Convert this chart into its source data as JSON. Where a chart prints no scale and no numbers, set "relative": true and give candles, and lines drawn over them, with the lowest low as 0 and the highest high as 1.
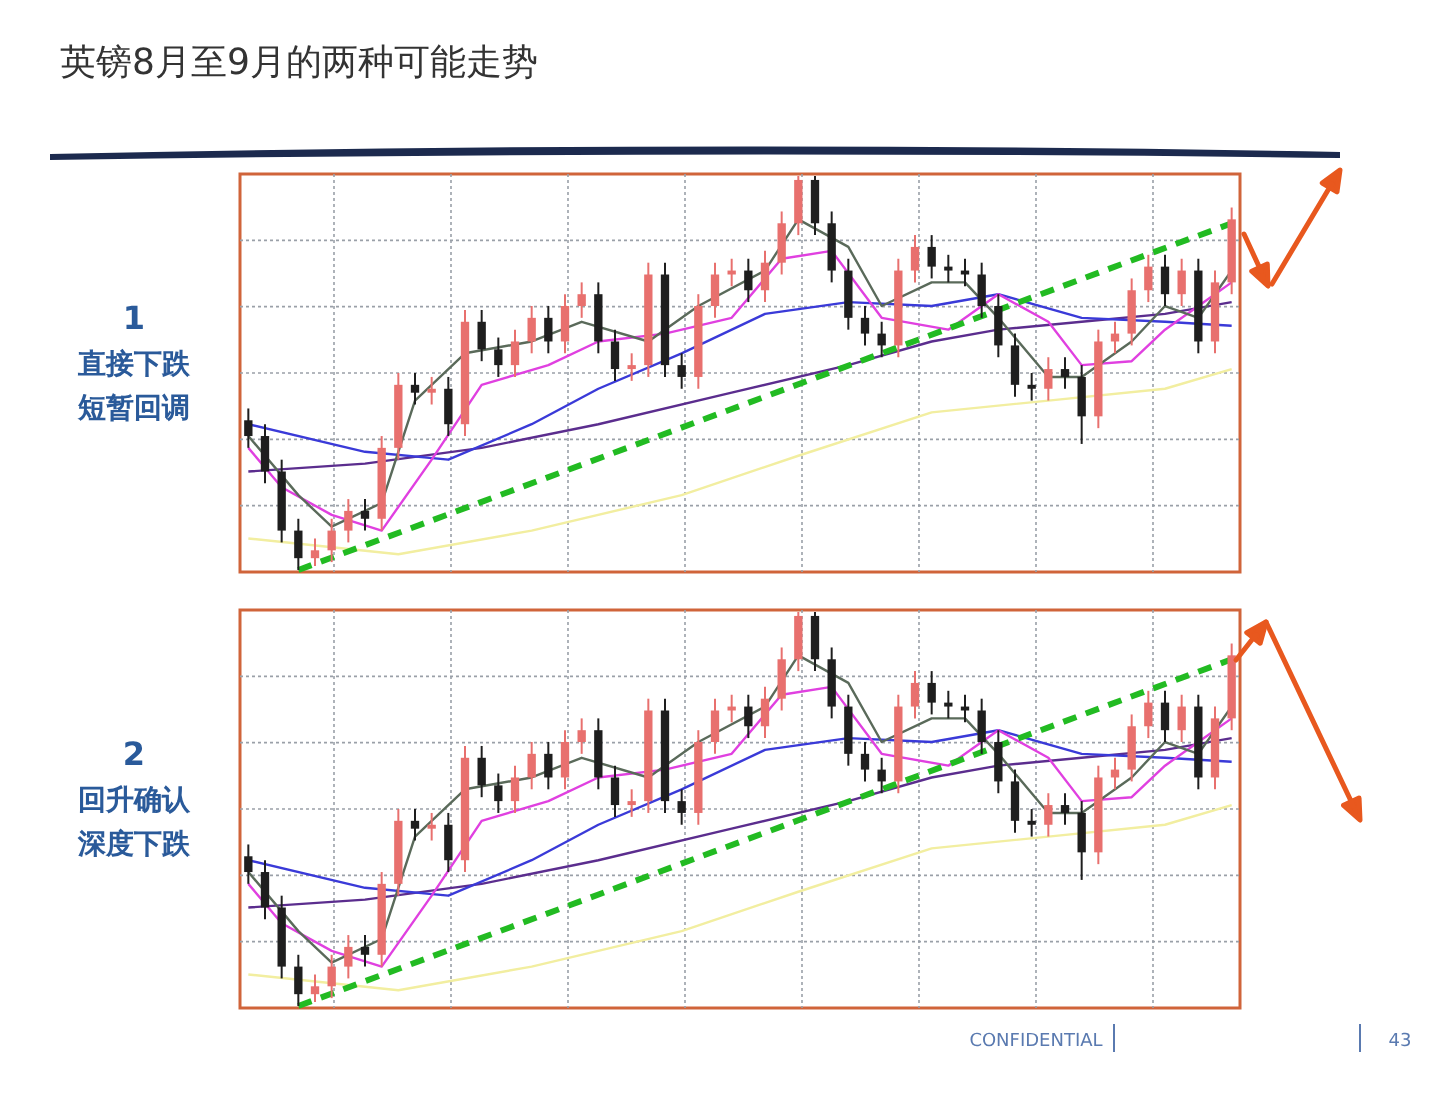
{
  "chart_data": [
    {
      "type": "candlestick",
      "title": "英镑8月至9月的两种可能走势",
      "relative": true,
      "grid": true,
      "annotations": [
        "1",
        "直接下跌",
        "短暂回调"
      ],
      "categories": [
        null,
        null,
        null,
        null,
        null,
        null,
        null,
        null,
        null,
        null,
        null,
        null,
        null,
        null,
        null,
        null,
        null,
        null,
        null,
        null,
        null,
        null,
        null,
        null,
        null,
        null,
        null,
        null,
        null,
        null,
        null,
        null,
        null,
        null,
        null,
        null,
        null,
        null,
        null,
        null,
        null,
        null,
        null,
        null,
        null,
        null,
        null,
        null,
        null,
        null,
        null,
        null,
        null,
        null,
        null,
        null,
        null,
        null,
        null,
        null
      ],
      "ohlc": [
        [
          0.38,
          0.41,
          0.31,
          0.34
        ],
        [
          0.34,
          0.37,
          0.22,
          0.25
        ],
        [
          0.25,
          0.28,
          0.07,
          0.1
        ],
        [
          0.1,
          0.13,
          0.0,
          0.03
        ],
        [
          0.03,
          0.08,
          0.01,
          0.05
        ],
        [
          0.05,
          0.13,
          0.02,
          0.1
        ],
        [
          0.1,
          0.18,
          0.07,
          0.15
        ],
        [
          0.15,
          0.18,
          0.1,
          0.13
        ],
        [
          0.13,
          0.34,
          0.1,
          0.31
        ],
        [
          0.31,
          0.5,
          0.28,
          0.47
        ],
        [
          0.47,
          0.5,
          0.42,
          0.45
        ],
        [
          0.45,
          0.49,
          0.42,
          0.46
        ],
        [
          0.46,
          0.49,
          0.34,
          0.37
        ],
        [
          0.37,
          0.66,
          0.34,
          0.63
        ],
        [
          0.63,
          0.66,
          0.53,
          0.56
        ],
        [
          0.56,
          0.59,
          0.49,
          0.52
        ],
        [
          0.52,
          0.61,
          0.49,
          0.58
        ],
        [
          0.58,
          0.67,
          0.55,
          0.64
        ],
        [
          0.64,
          0.67,
          0.55,
          0.58
        ],
        [
          0.58,
          0.7,
          0.55,
          0.67
        ],
        [
          0.67,
          0.73,
          0.64,
          0.7
        ],
        [
          0.7,
          0.73,
          0.55,
          0.58
        ],
        [
          0.58,
          0.61,
          0.48,
          0.51
        ],
        [
          0.51,
          0.55,
          0.48,
          0.52
        ],
        [
          0.52,
          0.78,
          0.49,
          0.75
        ],
        [
          0.75,
          0.78,
          0.49,
          0.52
        ],
        [
          0.52,
          0.55,
          0.46,
          0.49
        ],
        [
          0.49,
          0.7,
          0.46,
          0.67
        ],
        [
          0.67,
          0.78,
          0.64,
          0.75
        ],
        [
          0.75,
          0.79,
          0.72,
          0.76
        ],
        [
          0.76,
          0.79,
          0.68,
          0.71
        ],
        [
          0.71,
          0.81,
          0.68,
          0.78
        ],
        [
          0.78,
          0.91,
          0.75,
          0.88
        ],
        [
          0.88,
          1.0,
          0.85,
          0.99
        ],
        [
          0.99,
          1.0,
          0.85,
          0.88
        ],
        [
          0.88,
          0.91,
          0.73,
          0.76
        ],
        [
          0.76,
          0.79,
          0.61,
          0.64
        ],
        [
          0.64,
          0.67,
          0.57,
          0.6
        ],
        [
          0.6,
          0.63,
          0.54,
          0.57
        ],
        [
          0.57,
          0.79,
          0.54,
          0.76
        ],
        [
          0.76,
          0.85,
          0.73,
          0.82
        ],
        [
          0.82,
          0.85,
          0.74,
          0.77
        ],
        [
          0.77,
          0.8,
          0.73,
          0.76
        ],
        [
          0.76,
          0.79,
          0.72,
          0.75
        ],
        [
          0.75,
          0.78,
          0.64,
          0.67
        ],
        [
          0.67,
          0.7,
          0.54,
          0.57
        ],
        [
          0.57,
          0.6,
          0.44,
          0.47
        ],
        [
          0.47,
          0.5,
          0.43,
          0.46
        ],
        [
          0.46,
          0.54,
          0.43,
          0.51
        ],
        [
          0.51,
          0.54,
          0.46,
          0.49
        ],
        [
          0.49,
          0.52,
          0.32,
          0.39
        ],
        [
          0.39,
          0.61,
          0.36,
          0.58
        ],
        [
          0.58,
          0.63,
          0.55,
          0.6
        ],
        [
          0.6,
          0.74,
          0.57,
          0.71
        ],
        [
          0.71,
          0.8,
          0.68,
          0.77
        ],
        [
          0.77,
          0.8,
          0.67,
          0.7
        ],
        [
          0.7,
          0.79,
          0.67,
          0.76
        ],
        [
          0.76,
          0.79,
          0.55,
          0.58
        ],
        [
          0.58,
          0.76,
          0.55,
          0.73
        ],
        [
          0.73,
          0.92,
          0.7,
          0.89
        ]
      ],
      "series": [
        {
          "type": "line",
          "color": "#f2eea0",
          "values": [
            0.08,
            null,
            null,
            null,
            null,
            null,
            null,
            null,
            null,
            0.04,
            null,
            null,
            null,
            null,
            null,
            null,
            null,
            0.1,
            null,
            null,
            null,
            null,
            null,
            null,
            null,
            null,
            0.19,
            null,
            null,
            null,
            null,
            null,
            null,
            0.29,
            null,
            null,
            null,
            null,
            null,
            null,
            null,
            0.4,
            null,
            null,
            null,
            null,
            null,
            null,
            0.43,
            null,
            null,
            null,
            null,
            null,
            null,
            0.46,
            null,
            null,
            null,
            0.51
          ]
        },
        {
          "type": "line",
          "color": "#5b2d8e",
          "values": [
            0.25,
            null,
            null,
            null,
            null,
            null,
            null,
            0.27,
            null,
            null,
            null,
            null,
            null,
            null,
            0.31,
            null,
            null,
            null,
            null,
            null,
            null,
            0.37,
            null,
            null,
            null,
            null,
            null,
            null,
            null,
            0.45,
            null,
            null,
            null,
            null,
            null,
            null,
            0.52,
            null,
            null,
            null,
            null,
            0.58,
            null,
            null,
            null,
            0.61,
            null,
            null,
            null,
            null,
            0.63,
            null,
            null,
            null,
            null,
            0.65,
            null,
            null,
            null,
            0.68
          ]
        },
        {
          "type": "line",
          "color": "#3a3ad8",
          "values": [
            0.37,
            null,
            null,
            null,
            null,
            null,
            null,
            0.3,
            null,
            null,
            null,
            null,
            0.28,
            null,
            null,
            null,
            null,
            0.37,
            null,
            null,
            null,
            0.46,
            null,
            null,
            null,
            null,
            0.55,
            null,
            null,
            null,
            null,
            0.65,
            null,
            null,
            null,
            null,
            0.68,
            null,
            null,
            null,
            null,
            0.67,
            null,
            null,
            null,
            0.7,
            null,
            null,
            null,
            null,
            0.64,
            null,
            null,
            null,
            null,
            0.63,
            null,
            null,
            null,
            0.62
          ]
        },
        {
          "type": "line",
          "color": "#e040e0",
          "values": [
            0.31,
            null,
            0.21,
            null,
            null,
            0.14,
            null,
            null,
            0.1,
            null,
            null,
            0.28,
            null,
            null,
            0.47,
            null,
            null,
            null,
            0.52,
            null,
            null,
            0.58,
            null,
            null,
            null,
            0.6,
            null,
            null,
            null,
            0.64,
            null,
            null,
            0.79,
            null,
            null,
            0.81,
            null,
            null,
            0.64,
            null,
            null,
            null,
            0.61,
            null,
            null,
            0.7,
            null,
            null,
            0.63,
            null,
            0.52,
            null,
            null,
            0.53,
            null,
            0.61,
            null,
            0.67,
            null,
            0.73
          ]
        },
        {
          "type": "line",
          "color": "#5a6a5a",
          "values": [
            0.34,
            null,
            null,
            0.19,
            null,
            0.11,
            null,
            null,
            0.17,
            null,
            0.43,
            null,
            null,
            0.55,
            null,
            null,
            null,
            0.58,
            null,
            null,
            0.63,
            null,
            null,
            null,
            0.58,
            null,
            null,
            0.67,
            null,
            null,
            null,
            0.76,
            null,
            0.89,
            null,
            null,
            0.82,
            null,
            0.67,
            null,
            null,
            0.73,
            null,
            0.73,
            null,
            0.64,
            null,
            null,
            0.49,
            null,
            0.49,
            null,
            null,
            0.58,
            null,
            0.67,
            null,
            0.64,
            null,
            0.76
          ]
        },
        {
          "type": "line",
          "color": "#22bb22",
          "line_style": "dashed",
          "values": [
            null,
            null,
            null,
            0.0,
            null,
            null,
            null,
            null,
            null,
            null,
            null,
            null,
            null,
            null,
            null,
            null,
            null,
            null,
            null,
            null,
            null,
            null,
            null,
            null,
            null,
            null,
            null,
            null,
            null,
            null,
            null,
            null,
            null,
            null,
            null,
            null,
            null,
            null,
            null,
            null,
            null,
            null,
            null,
            null,
            null,
            null,
            null,
            null,
            null,
            null,
            null,
            null,
            null,
            null,
            null,
            null,
            null,
            null,
            null,
            0.88
          ]
        }
      ]
    },
    {
      "type": "candlestick",
      "relative": true,
      "grid": true,
      "annotations": [
        "2",
        "回升确认",
        "深度下跌",
        "CONFIDENTIAL",
        "43"
      ],
      "categories": [
        null,
        null,
        null,
        null,
        null,
        null,
        null,
        null,
        null,
        null,
        null,
        null,
        null,
        null,
        null,
        null,
        null,
        null,
        null,
        null,
        null,
        null,
        null,
        null,
        null,
        null,
        null,
        null,
        null,
        null,
        null,
        null,
        null,
        null,
        null,
        null,
        null,
        null,
        null,
        null,
        null,
        null,
        null,
        null,
        null,
        null,
        null,
        null,
        null,
        null,
        null,
        null,
        null,
        null,
        null,
        null,
        null,
        null,
        null,
        null
      ],
      "ohlc": [
        [
          0.38,
          0.41,
          0.31,
          0.34
        ],
        [
          0.34,
          0.37,
          0.22,
          0.25
        ],
        [
          0.25,
          0.28,
          0.07,
          0.1
        ],
        [
          0.1,
          0.13,
          0.0,
          0.03
        ],
        [
          0.03,
          0.08,
          0.01,
          0.05
        ],
        [
          0.05,
          0.13,
          0.02,
          0.1
        ],
        [
          0.1,
          0.18,
          0.07,
          0.15
        ],
        [
          0.15,
          0.18,
          0.1,
          0.13
        ],
        [
          0.13,
          0.34,
          0.1,
          0.31
        ],
        [
          0.31,
          0.5,
          0.28,
          0.47
        ],
        [
          0.47,
          0.5,
          0.42,
          0.45
        ],
        [
          0.45,
          0.49,
          0.42,
          0.46
        ],
        [
          0.46,
          0.49,
          0.34,
          0.37
        ],
        [
          0.37,
          0.66,
          0.34,
          0.63
        ],
        [
          0.63,
          0.66,
          0.53,
          0.56
        ],
        [
          0.56,
          0.59,
          0.49,
          0.52
        ],
        [
          0.52,
          0.61,
          0.49,
          0.58
        ],
        [
          0.58,
          0.67,
          0.55,
          0.64
        ],
        [
          0.64,
          0.67,
          0.55,
          0.58
        ],
        [
          0.58,
          0.7,
          0.55,
          0.67
        ],
        [
          0.67,
          0.73,
          0.64,
          0.7
        ],
        [
          0.7,
          0.73,
          0.55,
          0.58
        ],
        [
          0.58,
          0.61,
          0.48,
          0.51
        ],
        [
          0.51,
          0.55,
          0.48,
          0.52
        ],
        [
          0.52,
          0.78,
          0.49,
          0.75
        ],
        [
          0.75,
          0.78,
          0.49,
          0.52
        ],
        [
          0.52,
          0.55,
          0.46,
          0.49
        ],
        [
          0.49,
          0.7,
          0.46,
          0.67
        ],
        [
          0.67,
          0.78,
          0.64,
          0.75
        ],
        [
          0.75,
          0.79,
          0.72,
          0.76
        ],
        [
          0.76,
          0.79,
          0.68,
          0.71
        ],
        [
          0.71,
          0.81,
          0.68,
          0.78
        ],
        [
          0.78,
          0.91,
          0.75,
          0.88
        ],
        [
          0.88,
          1.0,
          0.85,
          0.99
        ],
        [
          0.99,
          1.0,
          0.85,
          0.88
        ],
        [
          0.88,
          0.91,
          0.73,
          0.76
        ],
        [
          0.76,
          0.79,
          0.61,
          0.64
        ],
        [
          0.64,
          0.67,
          0.57,
          0.6
        ],
        [
          0.6,
          0.63,
          0.54,
          0.57
        ],
        [
          0.57,
          0.79,
          0.54,
          0.76
        ],
        [
          0.76,
          0.85,
          0.73,
          0.82
        ],
        [
          0.82,
          0.85,
          0.74,
          0.77
        ],
        [
          0.77,
          0.8,
          0.73,
          0.76
        ],
        [
          0.76,
          0.79,
          0.72,
          0.75
        ],
        [
          0.75,
          0.78,
          0.64,
          0.67
        ],
        [
          0.67,
          0.7,
          0.54,
          0.57
        ],
        [
          0.57,
          0.6,
          0.44,
          0.47
        ],
        [
          0.47,
          0.5,
          0.43,
          0.46
        ],
        [
          0.46,
          0.54,
          0.43,
          0.51
        ],
        [
          0.51,
          0.54,
          0.46,
          0.49
        ],
        [
          0.49,
          0.52,
          0.32,
          0.39
        ],
        [
          0.39,
          0.61,
          0.36,
          0.58
        ],
        [
          0.58,
          0.63,
          0.55,
          0.6
        ],
        [
          0.6,
          0.74,
          0.57,
          0.71
        ],
        [
          0.71,
          0.8,
          0.68,
          0.77
        ],
        [
          0.77,
          0.8,
          0.67,
          0.7
        ],
        [
          0.7,
          0.79,
          0.67,
          0.76
        ],
        [
          0.76,
          0.79,
          0.55,
          0.58
        ],
        [
          0.58,
          0.76,
          0.55,
          0.73
        ],
        [
          0.73,
          0.92,
          0.7,
          0.89
        ]
      ],
      "series": [
        {
          "type": "line",
          "color": "#f2eea0",
          "values": [
            0.08,
            null,
            null,
            null,
            null,
            null,
            null,
            null,
            null,
            0.04,
            null,
            null,
            null,
            null,
            null,
            null,
            null,
            0.1,
            null,
            null,
            null,
            null,
            null,
            null,
            null,
            null,
            0.19,
            null,
            null,
            null,
            null,
            null,
            null,
            0.29,
            null,
            null,
            null,
            null,
            null,
            null,
            null,
            0.4,
            null,
            null,
            null,
            null,
            null,
            null,
            0.43,
            null,
            null,
            null,
            null,
            null,
            null,
            0.46,
            null,
            null,
            null,
            0.51
          ]
        },
        {
          "type": "line",
          "color": "#5b2d8e",
          "values": [
            0.25,
            null,
            null,
            null,
            null,
            null,
            null,
            0.27,
            null,
            null,
            null,
            null,
            null,
            null,
            0.31,
            null,
            null,
            null,
            null,
            null,
            null,
            0.37,
            null,
            null,
            null,
            null,
            null,
            null,
            null,
            0.45,
            null,
            null,
            null,
            null,
            null,
            null,
            0.52,
            null,
            null,
            null,
            null,
            0.58,
            null,
            null,
            null,
            0.61,
            null,
            null,
            null,
            null,
            0.63,
            null,
            null,
            null,
            null,
            0.65,
            null,
            null,
            null,
            0.68
          ]
        },
        {
          "type": "line",
          "color": "#3a3ad8",
          "values": [
            0.37,
            null,
            null,
            null,
            null,
            null,
            null,
            0.3,
            null,
            null,
            null,
            null,
            0.28,
            null,
            null,
            null,
            null,
            0.37,
            null,
            null,
            null,
            0.46,
            null,
            null,
            null,
            null,
            0.55,
            null,
            null,
            null,
            null,
            0.65,
            null,
            null,
            null,
            null,
            0.68,
            null,
            null,
            null,
            null,
            0.67,
            null,
            null,
            null,
            0.7,
            null,
            null,
            null,
            null,
            0.64,
            null,
            null,
            null,
            null,
            0.63,
            null,
            null,
            null,
            0.62
          ]
        },
        {
          "type": "line",
          "color": "#e040e0",
          "values": [
            0.31,
            null,
            0.21,
            null,
            null,
            0.14,
            null,
            null,
            0.1,
            null,
            null,
            0.28,
            null,
            null,
            0.47,
            null,
            null,
            null,
            0.52,
            null,
            null,
            0.58,
            null,
            null,
            null,
            0.6,
            null,
            null,
            null,
            0.64,
            null,
            null,
            0.79,
            null,
            null,
            0.81,
            null,
            null,
            0.64,
            null,
            null,
            null,
            0.61,
            null,
            null,
            0.7,
            null,
            null,
            0.63,
            null,
            0.52,
            null,
            null,
            0.53,
            null,
            0.61,
            null,
            0.67,
            null,
            0.73
          ]
        },
        {
          "type": "line",
          "color": "#5a6a5a",
          "values": [
            0.34,
            null,
            null,
            0.19,
            null,
            0.11,
            null,
            null,
            0.17,
            null,
            0.43,
            null,
            null,
            0.55,
            null,
            null,
            null,
            0.58,
            null,
            null,
            0.63,
            null,
            null,
            null,
            0.58,
            null,
            null,
            0.67,
            null,
            null,
            null,
            0.76,
            null,
            0.89,
            null,
            null,
            0.82,
            null,
            0.67,
            null,
            null,
            0.73,
            null,
            0.73,
            null,
            0.64,
            null,
            null,
            0.49,
            null,
            0.49,
            null,
            null,
            0.58,
            null,
            0.67,
            null,
            0.64,
            null,
            0.76
          ]
        },
        {
          "type": "line",
          "color": "#22bb22",
          "line_style": "dashed",
          "values": [
            null,
            null,
            null,
            0.0,
            null,
            null,
            null,
            null,
            null,
            null,
            null,
            null,
            null,
            null,
            null,
            null,
            null,
            null,
            null,
            null,
            null,
            null,
            null,
            null,
            null,
            null,
            null,
            null,
            null,
            null,
            null,
            null,
            null,
            null,
            null,
            null,
            null,
            null,
            null,
            null,
            null,
            null,
            null,
            null,
            null,
            null,
            null,
            null,
            null,
            null,
            null,
            null,
            null,
            null,
            null,
            null,
            null,
            null,
            null,
            0.88
          ]
        }
      ]
    }
  ]
}
